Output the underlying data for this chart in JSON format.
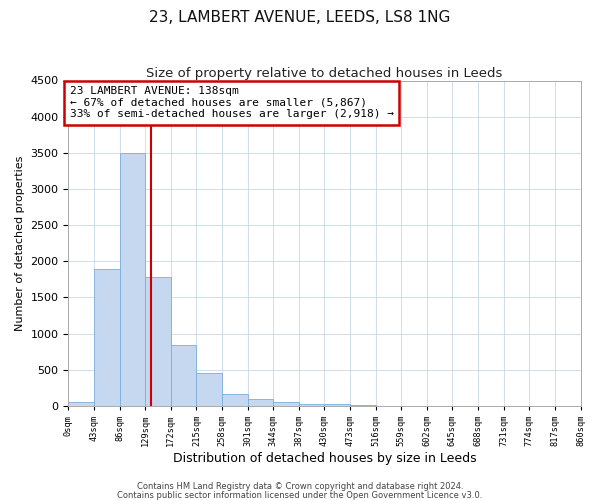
{
  "title": "23, LAMBERT AVENUE, LEEDS, LS8 1NG",
  "subtitle": "Size of property relative to detached houses in Leeds",
  "xlabel": "Distribution of detached houses by size in Leeds",
  "ylabel": "Number of detached properties",
  "bin_labels": [
    "0sqm",
    "43sqm",
    "86sqm",
    "129sqm",
    "172sqm",
    "215sqm",
    "258sqm",
    "301sqm",
    "344sqm",
    "387sqm",
    "430sqm",
    "473sqm",
    "516sqm",
    "559sqm",
    "602sqm",
    "645sqm",
    "688sqm",
    "731sqm",
    "774sqm",
    "817sqm",
    "860sqm"
  ],
  "bar_values": [
    50,
    1900,
    3500,
    1780,
    840,
    450,
    160,
    100,
    60,
    30,
    20,
    10,
    5,
    3,
    2,
    2,
    1,
    1,
    1,
    0
  ],
  "bar_color": "#c5d8f0",
  "bar_edge_color": "#7aaedc",
  "annotation_text_line1": "23 LAMBERT AVENUE: 138sqm",
  "annotation_text_line2": "← 67% of detached houses are smaller (5,867)",
  "annotation_text_line3": "33% of semi-detached houses are larger (2,918) →",
  "annotation_box_color": "#ffffff",
  "annotation_box_edge_color": "#cc0000",
  "vline_color": "#cc0000",
  "vline_x": 138,
  "ylim": [
    0,
    4500
  ],
  "footnote1": "Contains HM Land Registry data © Crown copyright and database right 2024.",
  "footnote2": "Contains public sector information licensed under the Open Government Licence v3.0.",
  "bg_color": "#ffffff",
  "grid_color": "#c8d8e8",
  "title_fontsize": 11,
  "subtitle_fontsize": 9.5,
  "xlabel_fontsize": 9,
  "ylabel_fontsize": 8,
  "bin_edges": [
    0,
    43,
    86,
    129,
    172,
    215,
    258,
    301,
    344,
    387,
    430,
    473,
    516,
    559,
    602,
    645,
    688,
    731,
    774,
    817,
    860
  ],
  "yticks": [
    0,
    500,
    1000,
    1500,
    2000,
    2500,
    3000,
    3500,
    4000,
    4500
  ]
}
